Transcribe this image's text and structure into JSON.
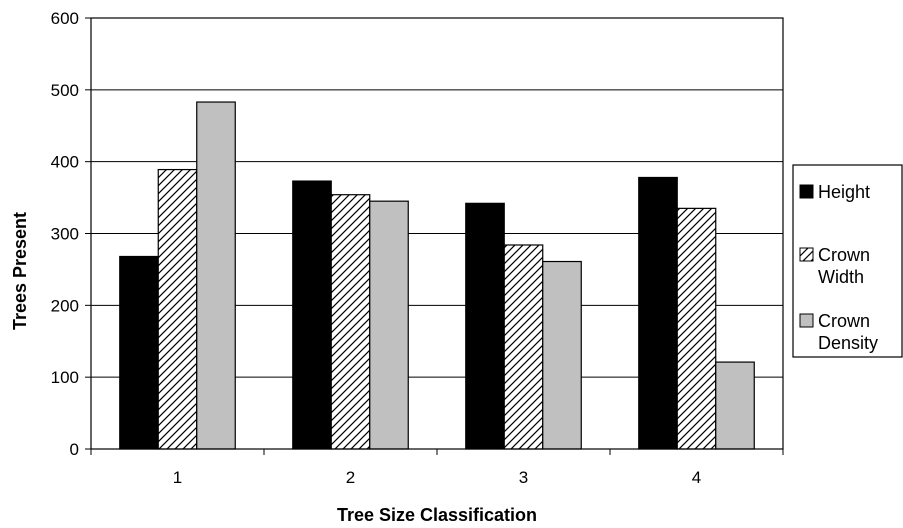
{
  "chart_data": {
    "type": "bar",
    "title": "",
    "xlabel": "Tree Size Classification",
    "ylabel": "Trees Present",
    "categories": [
      "1",
      "2",
      "3",
      "4"
    ],
    "ylim": [
      0,
      600
    ],
    "yticks": [
      0,
      100,
      200,
      300,
      400,
      500,
      600
    ],
    "grid": true,
    "legend_position": "right",
    "series": [
      {
        "name": "Height",
        "legend_lines": [
          "Height"
        ],
        "fill": "#000000",
        "pattern": "solid",
        "values": [
          268,
          373,
          342,
          378
        ]
      },
      {
        "name": "Crown Width",
        "legend_lines": [
          "Crown",
          "Width"
        ],
        "fill": "#ffffff",
        "pattern": "diagonal-hatch",
        "values": [
          389,
          354,
          284,
          335
        ]
      },
      {
        "name": "Crown Density",
        "legend_lines": [
          "Crown",
          "Density"
        ],
        "fill": "#c0c0c0",
        "pattern": "solid",
        "values": [
          483,
          345,
          261,
          121
        ]
      }
    ]
  }
}
